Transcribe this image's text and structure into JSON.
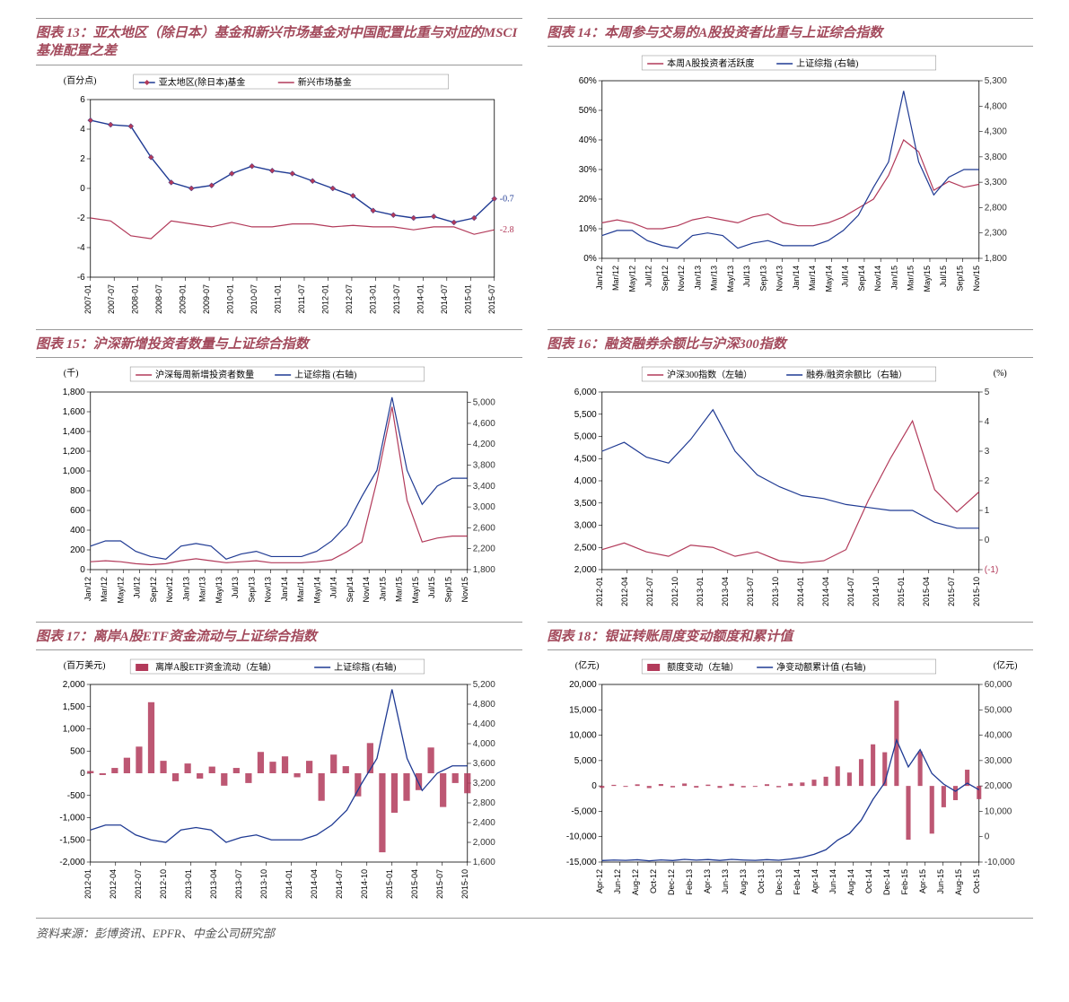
{
  "colors": {
    "red": "#b23a5a",
    "blue": "#1f3a93",
    "grid": "#e0e0e0",
    "border": "#000",
    "title": "#a34a5c",
    "bg": "#ffffff"
  },
  "source": "资料来源：彭博资讯、EPFR、中金公司研究部",
  "c13": {
    "title": "图表 13：亚太地区（除日本）基金和新兴市场基金对中国配置比重与对应的MSCI基准配置之差",
    "type": "line",
    "ylabel": "(百分点)",
    "ylabel_fontsize": 10,
    "ylim": [
      -6,
      6
    ],
    "ytick_step": 2,
    "xvals": [
      "2007-01",
      "2007-07",
      "2008-01",
      "2008-07",
      "2009-01",
      "2009-07",
      "2010-01",
      "2010-07",
      "2011-01",
      "2011-07",
      "2012-01",
      "2012-07",
      "2013-01",
      "2013-07",
      "2014-01",
      "2014-07",
      "2015-01",
      "2015-07"
    ],
    "series": [
      {
        "name": "亚太地区(除日本)基金",
        "color": "#1f3a93",
        "marker": "diamond",
        "marker_fill": "#b23a5a",
        "marker_size": 3,
        "line_width": 1.4,
        "y": [
          4.6,
          4.3,
          4.2,
          2.1,
          0.4,
          0.0,
          0.2,
          1.0,
          1.5,
          1.2,
          1.0,
          0.5,
          0.0,
          -0.5,
          -1.5,
          -1.8,
          -2.0,
          -1.9,
          -2.3,
          -2.0,
          -0.7
        ],
        "end_label": "-0.7"
      },
      {
        "name": "新兴市场基金",
        "color": "#b23a5a",
        "line_width": 1.2,
        "y": [
          -2.0,
          -2.2,
          -3.2,
          -3.4,
          -2.2,
          -2.4,
          -2.6,
          -2.3,
          -2.6,
          -2.6,
          -2.4,
          -2.4,
          -2.6,
          -2.5,
          -2.6,
          -2.6,
          -2.8,
          -2.6,
          -2.6,
          -3.1,
          -2.8
        ],
        "end_label": "-2.8"
      }
    ],
    "legend_pos": "top",
    "legend_box": true
  },
  "c14": {
    "title": "图表 14：本周参与交易的A股投资者比重与上证综合指数",
    "type": "line-dual",
    "ylim_l": [
      0,
      60
    ],
    "ytick_l": 10,
    "yfmt_l": "%",
    "ylim_r": [
      1800,
      5300
    ],
    "ytick_r": 500,
    "xvals": [
      "Jan/12",
      "Mar/12",
      "May/12",
      "Jul/12",
      "Sep/12",
      "Nov/12",
      "Jan/13",
      "Mar/13",
      "May/13",
      "Jul/13",
      "Sep/13",
      "Nov/13",
      "Jan/14",
      "Mar/14",
      "May/14",
      "Jul/14",
      "Sep/14",
      "Nov/14",
      "Jan/15",
      "Mar/15",
      "May/15",
      "Jul/15",
      "Sep/15",
      "Nov/15"
    ],
    "series": [
      {
        "name": "本周A股投资者活跃度",
        "color": "#b23a5a",
        "axis": "l",
        "line_width": 1.2,
        "y": [
          12,
          13,
          12,
          10,
          10,
          11,
          13,
          14,
          13,
          12,
          14,
          15,
          12,
          11,
          11,
          12,
          14,
          17,
          20,
          28,
          40,
          36,
          23,
          26,
          24,
          25
        ]
      },
      {
        "name": "上证综指 (右轴)",
        "color": "#1f3a93",
        "axis": "r",
        "line_width": 1.2,
        "y": [
          2250,
          2350,
          2350,
          2150,
          2050,
          2000,
          2250,
          2300,
          2250,
          2000,
          2100,
          2150,
          2050,
          2050,
          2050,
          2150,
          2350,
          2650,
          3200,
          3700,
          5100,
          3700,
          3050,
          3400,
          3550,
          3550
        ]
      }
    ],
    "legend_pos": "top",
    "legend_box": true
  },
  "c15": {
    "title": "图表 15：沪深新增投资者数量与上证综合指数",
    "type": "line-dual",
    "ylabel_l": "(千)",
    "ylim_l": [
      0,
      1800
    ],
    "ytick_l": 200,
    "ylim_r": [
      1800,
      5200
    ],
    "ytick_r": 400,
    "xvals": [
      "Jan/12",
      "Mar/12",
      "May/12",
      "Jul/12",
      "Sep/12",
      "Nov/12",
      "Jan/13",
      "Mar/13",
      "May/13",
      "Jul/13",
      "Sep/13",
      "Nov/13",
      "Jan/14",
      "Mar/14",
      "May/14",
      "Jul/14",
      "Sep/14",
      "Nov/14",
      "Jan/15",
      "Mar/15",
      "May/15",
      "Jul/15",
      "Sep/15",
      "Nov/15"
    ],
    "series": [
      {
        "name": "沪深每周新增投资者数量",
        "color": "#b23a5a",
        "axis": "l",
        "line_width": 1.2,
        "y": [
          80,
          90,
          80,
          60,
          50,
          60,
          90,
          110,
          90,
          70,
          80,
          90,
          70,
          70,
          70,
          80,
          100,
          180,
          280,
          900,
          1650,
          700,
          280,
          320,
          340,
          340
        ]
      },
      {
        "name": "上证综指 (右轴)",
        "color": "#1f3a93",
        "axis": "r",
        "line_width": 1.2,
        "y": [
          2250,
          2350,
          2350,
          2150,
          2050,
          2000,
          2250,
          2300,
          2250,
          2000,
          2100,
          2150,
          2050,
          2050,
          2050,
          2150,
          2350,
          2650,
          3200,
          3700,
          5100,
          3700,
          3050,
          3400,
          3550,
          3550
        ]
      }
    ],
    "legend_pos": "top",
    "legend_box": true
  },
  "c16": {
    "title": "图表 16：融资融券余额比与沪深300指数",
    "type": "line-dual",
    "ylabel_r": "(%)",
    "ylim_l": [
      2000,
      6000
    ],
    "ytick_l": 500,
    "ylim_r": [
      -1,
      5
    ],
    "ytick_r": 1,
    "r_last_color": "#b23a5a",
    "xvals": [
      "2012-01",
      "2012-04",
      "2012-07",
      "2012-10",
      "2013-01",
      "2013-04",
      "2013-07",
      "2013-10",
      "2014-01",
      "2014-04",
      "2014-07",
      "2014-10",
      "2015-01",
      "2015-04",
      "2015-07",
      "2015-10"
    ],
    "series": [
      {
        "name": "沪深300指数（左轴）",
        "color": "#b23a5a",
        "axis": "l",
        "line_width": 1.2,
        "y": [
          2450,
          2600,
          2400,
          2300,
          2550,
          2500,
          2300,
          2400,
          2200,
          2150,
          2200,
          2450,
          3550,
          4500,
          5350,
          3800,
          3300,
          3750
        ]
      },
      {
        "name": "融券/融资余额比（右轴）",
        "color": "#1f3a93",
        "axis": "r",
        "line_width": 1.2,
        "y": [
          3.0,
          3.3,
          2.8,
          2.6,
          3.4,
          4.4,
          3.0,
          2.2,
          1.8,
          1.5,
          1.4,
          1.2,
          1.1,
          1.0,
          1.0,
          0.6,
          0.4,
          0.4
        ]
      }
    ],
    "legend_pos": "top",
    "legend_box": true
  },
  "c17": {
    "title": "图表 17：离岸A股ETF资金流动与上证综合指数",
    "type": "bar-line-dual",
    "ylabel_l": "(百万美元)",
    "ylim_l": [
      -2000,
      2000
    ],
    "ytick_l": 500,
    "ylim_r": [
      1600,
      5200
    ],
    "ytick_r": 400,
    "xvals": [
      "2012-01",
      "2012-04",
      "2012-07",
      "2012-10",
      "2013-01",
      "2013-04",
      "2013-07",
      "2013-10",
      "2014-01",
      "2014-04",
      "2014-07",
      "2014-10",
      "2015-01",
      "2015-04",
      "2015-07",
      "2015-10"
    ],
    "series": [
      {
        "name": "离岸A股ETF资金流动（左轴）",
        "color": "#b23a5a",
        "axis": "l",
        "type": "bar",
        "bar_width": 0.55,
        "y": [
          50,
          -40,
          120,
          350,
          600,
          1600,
          280,
          -180,
          220,
          -120,
          150,
          -280,
          120,
          -220,
          480,
          260,
          380,
          -90,
          280,
          -620,
          420,
          160,
          -520,
          680,
          -1780,
          -890,
          -620,
          -380,
          580,
          -760,
          -220,
          -450
        ]
      },
      {
        "name": "上证综指 (右轴)",
        "color": "#1f3a93",
        "axis": "r",
        "type": "line",
        "line_width": 1.3,
        "y": [
          2250,
          2350,
          2350,
          2150,
          2050,
          2000,
          2250,
          2300,
          2250,
          2000,
          2100,
          2150,
          2050,
          2050,
          2050,
          2150,
          2350,
          2650,
          3200,
          3700,
          5100,
          3700,
          3050,
          3400,
          3550,
          3550
        ]
      }
    ],
    "legend_pos": "top",
    "legend_box": true
  },
  "c18": {
    "title": "图表 18：银证转账周度变动额度和累计值",
    "type": "bar-line-dual",
    "ylabel_l": "(亿元)",
    "ylabel_r": "(亿元)",
    "ylim_l": [
      -15000,
      20000
    ],
    "ytick_l": 5000,
    "ylim_r": [
      -10000,
      60000
    ],
    "ytick_r": 10000,
    "xvals": [
      "Apr-12",
      "Jun-12",
      "Aug-12",
      "Oct-12",
      "Dec-12",
      "Feb-13",
      "Apr-13",
      "Jun-13",
      "Aug-13",
      "Oct-13",
      "Dec-13",
      "Feb-14",
      "Apr-14",
      "Jun-14",
      "Aug-14",
      "Oct-14",
      "Dec-14",
      "Feb-15",
      "Apr-15",
      "Jun-15",
      "Aug-15",
      "Oct-15"
    ],
    "series": [
      {
        "name": "额度变动（左轴）",
        "color": "#b23a5a",
        "axis": "l",
        "type": "bar",
        "bar_width": 0.4,
        "y": [
          -380,
          220,
          -180,
          320,
          -420,
          380,
          -280,
          480,
          -320,
          260,
          -380,
          420,
          -280,
          -180,
          340,
          -260,
          520,
          680,
          1240,
          1820,
          3860,
          2640,
          5280,
          8200,
          6640,
          16800,
          -10600,
          6800,
          -9400,
          -4200,
          -2800,
          3200,
          -2600
        ]
      },
      {
        "name": "净变动额累计值 (右轴)",
        "color": "#1f3a93",
        "axis": "r",
        "type": "line",
        "line_width": 1.3,
        "y": [
          -9400,
          -9200,
          -9350,
          -9100,
          -9500,
          -9150,
          -9400,
          -8950,
          -9250,
          -9000,
          -9350,
          -8950,
          -9200,
          -9350,
          -9050,
          -9280,
          -8800,
          -8150,
          -6950,
          -5150,
          -1350,
          1250,
          6500,
          14700,
          21300,
          38100,
          27500,
          34300,
          24900,
          20700,
          17900,
          21100,
          18500
        ]
      }
    ],
    "legend_pos": "top",
    "legend_box": true
  }
}
